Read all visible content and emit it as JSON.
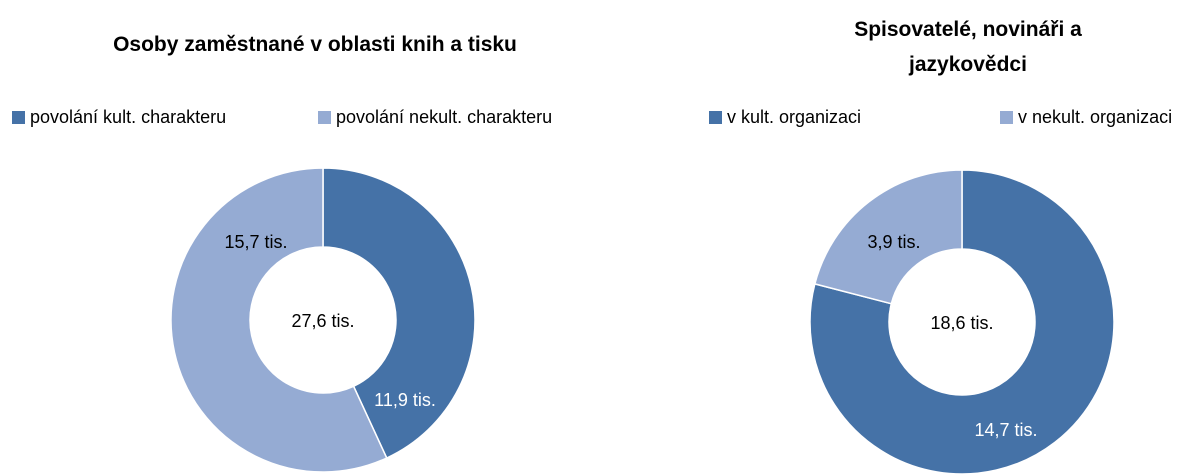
{
  "chart_data": [
    {
      "type": "pie",
      "title": "Osoby zaměstnané v oblasti knih a tisku",
      "categories": [
        "povolání kult. charakteru",
        "povolání nekult. charakteru"
      ],
      "values": [
        11.9,
        15.7
      ],
      "value_labels": [
        "11,9 tis.",
        "15,7 tis."
      ],
      "colors": [
        "#4572a7",
        "#95abd3"
      ],
      "center_label": "27,6 tis.",
      "legend": "top"
    },
    {
      "type": "pie",
      "title": "Spisovatelé, novináři a jazykovědci",
      "categories": [
        "v kult. organizaci",
        "v nekult. organizaci"
      ],
      "values": [
        14.7,
        3.9
      ],
      "value_labels": [
        "14,7 tis.",
        "3,9 tis."
      ],
      "colors": [
        "#4572a7",
        "#95abd3"
      ],
      "center_label": "18,6 tis.",
      "legend": "top"
    }
  ]
}
